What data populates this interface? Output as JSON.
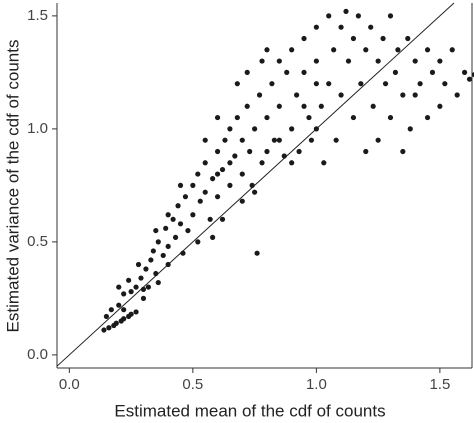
{
  "chart_data": {
    "type": "scatter",
    "x_label": "Estimated mean of the cdf of counts",
    "y_label": "Estimated variance of the cdf of counts",
    "xlim": [
      -0.05,
      1.63
    ],
    "ylim": [
      -0.058,
      1.557
    ],
    "xticks": [
      {
        "value": 0,
        "label": "0.0"
      },
      {
        "value": 0.5,
        "label": "0.5"
      },
      {
        "value": 1,
        "label": "1.0"
      },
      {
        "value": 1.5,
        "label": "1.5"
      }
    ],
    "yticks": [
      {
        "value": 0,
        "label": "0.0"
      },
      {
        "value": 0.5,
        "label": "0.5"
      },
      {
        "value": 1,
        "label": "1.0"
      },
      {
        "value": 1.5,
        "label": "1.5"
      }
    ],
    "color": "#1a1a1a",
    "x": [
      0.14,
      0.16,
      0.18,
      0.19,
      0.21,
      0.22,
      0.24,
      0.25,
      0.27,
      0.15,
      0.17,
      0.2,
      0.22,
      0.25,
      0.2,
      0.24,
      0.27,
      0.29,
      0.3,
      0.28,
      0.31,
      0.33,
      0.35,
      0.34,
      0.36,
      0.38,
      0.4,
      0.39,
      0.42,
      0.43,
      0.45,
      0.44,
      0.47,
      0.48,
      0.5,
      0.5,
      0.52,
      0.53,
      0.55,
      0.55,
      0.57,
      0.58,
      0.6,
      0.6,
      0.62,
      0.63,
      0.65,
      0.65,
      0.67,
      0.68,
      0.7,
      0.7,
      0.72,
      0.73,
      0.75,
      0.75,
      0.77,
      0.78,
      0.8,
      0.8,
      0.82,
      0.83,
      0.85,
      0.85,
      0.87,
      0.88,
      0.9,
      0.9,
      0.92,
      0.93,
      0.95,
      0.95,
      0.97,
      0.98,
      1.0,
      1.0,
      1.02,
      1.03,
      1.05,
      1.05,
      1.07,
      1.08,
      1.1,
      1.1,
      1.12,
      1.13,
      1.15,
      1.15,
      1.17,
      1.18,
      1.2,
      1.2,
      1.22,
      1.23,
      1.25,
      1.25,
      1.27,
      1.28,
      1.3,
      1.3,
      1.32,
      1.33,
      1.35,
      1.35,
      1.37,
      1.38,
      1.4,
      1.4,
      1.42,
      1.45,
      1.45,
      1.47,
      1.5,
      1.5,
      1.52,
      1.55,
      1.57,
      1.6,
      1.62,
      1.64,
      0.22,
      0.3,
      0.32,
      0.36,
      0.4,
      0.46,
      0.52,
      0.58,
      0.62,
      0.7,
      0.74,
      0.76,
      0.55,
      0.6,
      0.68,
      0.72,
      0.78,
      0.8,
      0.45,
      0.4,
      0.35,
      0.85,
      0.9,
      0.95,
      1.0,
      1.0,
      0.65,
      0.6
    ],
    "y": [
      0.11,
      0.12,
      0.13,
      0.14,
      0.15,
      0.16,
      0.17,
      0.18,
      0.19,
      0.17,
      0.2,
      0.22,
      0.27,
      0.28,
      0.3,
      0.33,
      0.3,
      0.34,
      0.29,
      0.4,
      0.38,
      0.42,
      0.36,
      0.46,
      0.5,
      0.44,
      0.48,
      0.56,
      0.6,
      0.52,
      0.58,
      0.66,
      0.7,
      0.55,
      0.62,
      0.75,
      0.8,
      0.68,
      0.72,
      0.85,
      0.6,
      0.78,
      0.9,
      0.7,
      0.82,
      0.95,
      0.75,
      1.0,
      0.88,
      1.05,
      0.8,
      0.95,
      1.1,
      0.9,
      1.0,
      0.72,
      1.15,
      0.85,
      1.05,
      0.9,
      1.2,
      0.95,
      1.3,
      1.1,
      0.88,
      1.25,
      1.0,
      1.35,
      1.15,
      0.9,
      1.4,
      1.25,
      1.05,
      0.95,
      1.3,
      1.45,
      1.1,
      0.85,
      1.5,
      1.2,
      1.35,
      0.95,
      1.45,
      1.15,
      1.52,
      1.3,
      1.05,
      1.4,
      1.5,
      1.2,
      0.9,
      1.35,
      1.45,
      1.1,
      1.3,
      0.95,
      1.4,
      1.2,
      1.5,
      1.05,
      1.25,
      1.35,
      0.9,
      1.15,
      1.4,
      1.0,
      1.3,
      1.15,
      1.2,
      1.05,
      1.35,
      1.25,
      1.1,
      1.3,
      1.2,
      1.35,
      1.15,
      1.25,
      1.22,
      1.24,
      0.2,
      0.25,
      0.3,
      0.32,
      0.4,
      0.45,
      0.5,
      0.52,
      0.6,
      0.68,
      0.75,
      0.45,
      0.95,
      1.05,
      1.2,
      1.25,
      1.3,
      1.35,
      0.75,
      0.62,
      0.55,
      0.95,
      0.85,
      1.1,
      1.0,
      1.2,
      0.85,
      0.8
    ]
  }
}
